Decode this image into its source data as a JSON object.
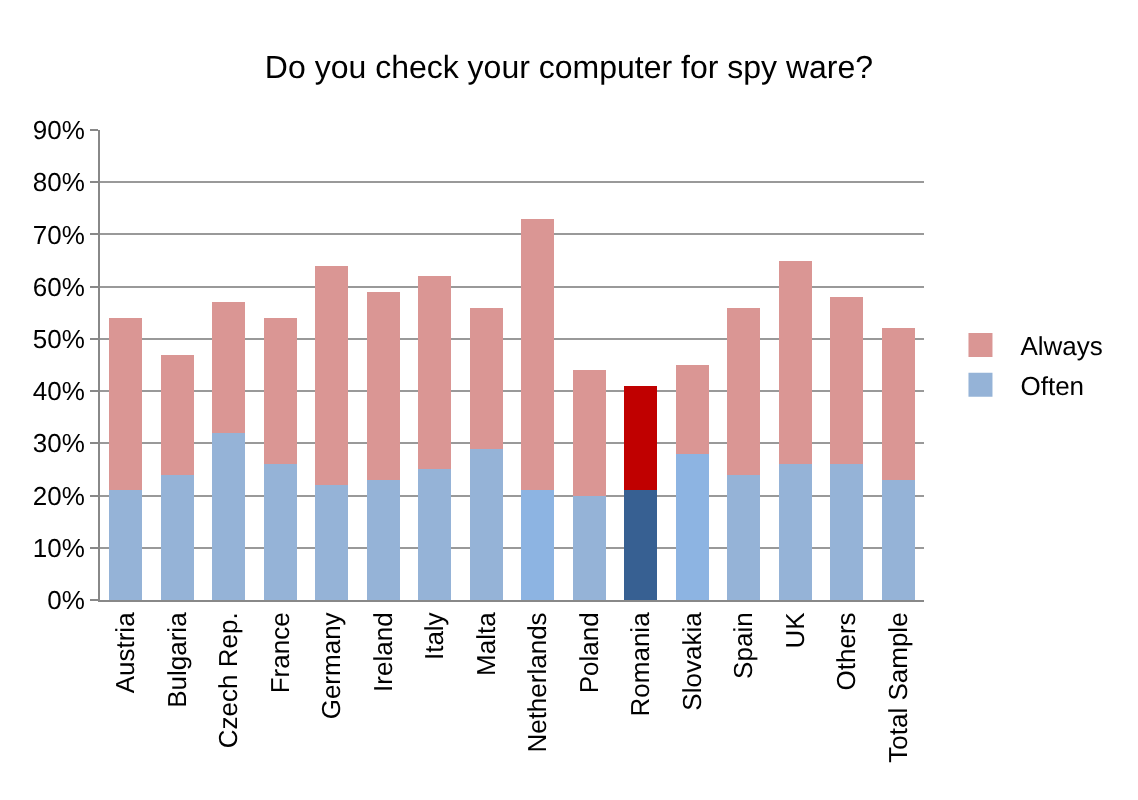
{
  "chart_data": {
    "type": "bar",
    "title": "Do you check your computer for spy ware?",
    "stacked": true,
    "categories": [
      "Austria",
      "Bulgaria",
      "Czech Rep.",
      "France",
      "Germany",
      "Ireland",
      "Italy",
      "Malta",
      "Netherlands",
      "Poland",
      "Romania",
      "Slovakia",
      "Spain",
      "UK",
      "Others",
      "Total Sample"
    ],
    "series": [
      {
        "name": "Often",
        "color": "#95b3d7",
        "colors": [
          "#95b3d7",
          "#95b3d7",
          "#95b3d7",
          "#95b3d7",
          "#95b3d7",
          "#95b3d7",
          "#95b3d7",
          "#95b3d7",
          "#8db4e2",
          "#95b3d7",
          "#376092",
          "#8db4e2",
          "#95b3d7",
          "#95b3d7",
          "#95b3d7",
          "#95b3d7"
        ],
        "values": [
          21,
          24,
          32,
          26,
          22,
          23,
          25,
          29,
          21,
          20,
          21,
          28,
          24,
          26,
          26,
          23
        ]
      },
      {
        "name": "Always",
        "color": "#da9694",
        "colors": [
          "#da9694",
          "#da9694",
          "#da9694",
          "#da9694",
          "#da9694",
          "#da9694",
          "#da9694",
          "#da9694",
          "#da9694",
          "#da9694",
          "#c00000",
          "#da9694",
          "#da9694",
          "#da9694",
          "#da9694",
          "#da9694"
        ],
        "values": [
          33,
          23,
          25,
          28,
          42,
          36,
          37,
          27,
          52,
          24,
          20,
          17,
          32,
          39,
          32,
          29
        ]
      }
    ],
    "ylim": [
      0,
      90
    ],
    "yticks": [
      {
        "value": 0,
        "label": "0%"
      },
      {
        "value": 10,
        "label": "10%"
      },
      {
        "value": 20,
        "label": "20%"
      },
      {
        "value": 30,
        "label": "30%"
      },
      {
        "value": 40,
        "label": "40%"
      },
      {
        "value": 50,
        "label": "50%"
      },
      {
        "value": 60,
        "label": "60%"
      },
      {
        "value": 70,
        "label": "70%"
      },
      {
        "value": 80,
        "label": "80%"
      },
      {
        "value": 90,
        "label": "90%"
      }
    ],
    "grid": "y",
    "legend": "right"
  }
}
